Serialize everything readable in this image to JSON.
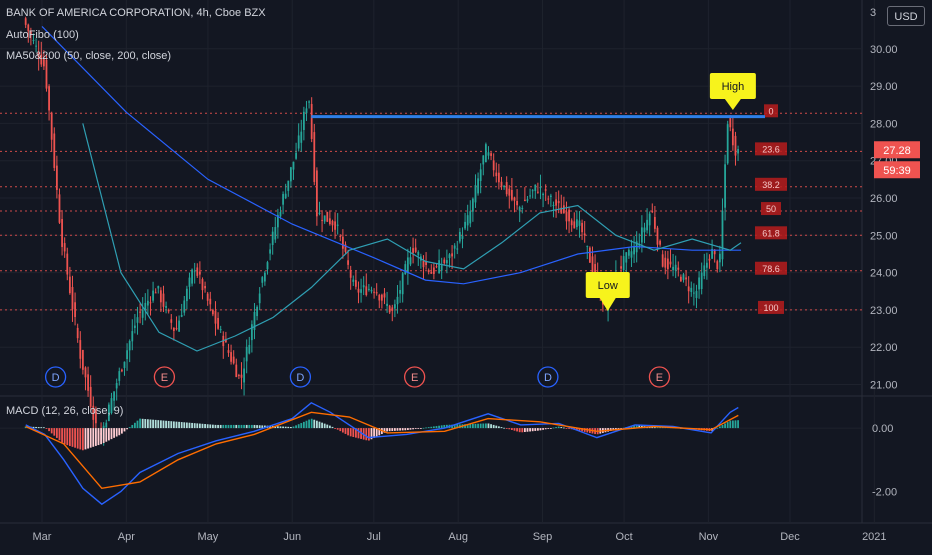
{
  "header": {
    "title": "BANK OF AMERICA CORPORATION, 4h, Cboe BZX",
    "autofibo": "AutoFibo (100)",
    "ma": "MA50&200 (50, close, 200, close)",
    "currency_button": "USD"
  },
  "macd": {
    "label": "MACD (12, 26, close, 9)"
  },
  "colors": {
    "background": "#131722",
    "up": "#26a69a",
    "down": "#ef5350",
    "fib_line": "#ef5350",
    "ma50": "#2f9fb3",
    "ma200": "#2962ff",
    "high_line": "#2e7fe8",
    "callout": "#f7f31c",
    "macd_line": "#2962ff",
    "signal_line": "#ff6d00"
  },
  "chart_data": {
    "type": "candlestick",
    "symbol": "BAC",
    "timeframe": "4h",
    "x_labels": [
      "Mar",
      "Apr",
      "May",
      "Jun",
      "Jul",
      "Aug",
      "Sep",
      "Oct",
      "Nov",
      "Dec",
      "2021"
    ],
    "price_axis": {
      "ticks": [
        "21.00",
        "22.00",
        "23.00",
        "24.00",
        "25.00",
        "26.00",
        "27.00",
        "28.00",
        "29.00",
        "30.00"
      ],
      "top_partial": "3",
      "range": [
        20.8,
        31.2
      ]
    },
    "current_price": "27.28",
    "countdown": "59:39",
    "fib_levels": [
      {
        "label": "0",
        "price": 28.27
      },
      {
        "label": "23.6",
        "price": 27.25
      },
      {
        "label": "38.2",
        "price": 26.3
      },
      {
        "label": "50",
        "price": 25.65
      },
      {
        "label": "61.8",
        "price": 25.0
      },
      {
        "label": "78.6",
        "price": 24.05
      },
      {
        "label": "100",
        "price": 23.0
      }
    ],
    "high_line_price": 28.18,
    "annotations": {
      "high": "High",
      "low": "Low"
    },
    "events": [
      {
        "label": "D",
        "date": "2020-03-06"
      },
      {
        "label": "E",
        "date": "2020-04-15"
      },
      {
        "label": "D",
        "date": "2020-06-04"
      },
      {
        "label": "E",
        "date": "2020-07-16"
      },
      {
        "label": "D",
        "date": "2020-09-03"
      },
      {
        "label": "E",
        "date": "2020-10-14"
      }
    ],
    "price_path": [
      [
        "2020-02-24",
        30.8
      ],
      [
        "2020-03-03",
        29.5
      ],
      [
        "2020-03-09",
        25.0
      ],
      [
        "2020-03-16",
        21.8
      ],
      [
        "2020-03-23",
        19.5
      ],
      [
        "2020-03-30",
        21.2
      ],
      [
        "2020-04-06",
        22.8
      ],
      [
        "2020-04-13",
        23.6
      ],
      [
        "2020-04-20",
        22.4
      ],
      [
        "2020-04-27",
        24.2
      ],
      [
        "2020-05-04",
        22.8
      ],
      [
        "2020-05-14",
        21.1
      ],
      [
        "2020-05-21",
        23.6
      ],
      [
        "2020-05-28",
        25.6
      ],
      [
        "2020-06-04",
        27.4
      ],
      [
        "2020-06-08",
        28.8
      ],
      [
        "2020-06-11",
        25.6
      ],
      [
        "2020-06-18",
        25.3
      ],
      [
        "2020-06-25",
        23.5
      ],
      [
        "2020-07-02",
        23.6
      ],
      [
        "2020-07-09",
        22.9
      ],
      [
        "2020-07-16",
        24.7
      ],
      [
        "2020-07-23",
        24.0
      ],
      [
        "2020-07-30",
        24.4
      ],
      [
        "2020-08-06",
        25.5
      ],
      [
        "2020-08-12",
        27.3
      ],
      [
        "2020-08-17",
        26.5
      ],
      [
        "2020-08-24",
        25.7
      ],
      [
        "2020-08-31",
        26.3
      ],
      [
        "2020-09-04",
        26.0
      ],
      [
        "2020-09-10",
        25.6
      ],
      [
        "2020-09-16",
        25.2
      ],
      [
        "2020-09-22",
        23.7
      ],
      [
        "2020-09-25",
        23.1
      ],
      [
        "2020-09-30",
        24.1
      ],
      [
        "2020-10-07",
        24.8
      ],
      [
        "2020-10-12",
        25.7
      ],
      [
        "2020-10-16",
        24.3
      ],
      [
        "2020-10-22",
        24.0
      ],
      [
        "2020-10-28",
        23.4
      ],
      [
        "2020-11-03",
        24.6
      ],
      [
        "2020-11-06",
        24.1
      ],
      [
        "2020-11-09",
        28.1
      ],
      [
        "2020-11-12",
        27.28
      ]
    ],
    "ma50_path": [
      [
        "2020-03-16",
        28.0
      ],
      [
        "2020-03-30",
        24.0
      ],
      [
        "2020-04-13",
        22.4
      ],
      [
        "2020-04-27",
        21.9
      ],
      [
        "2020-05-11",
        22.3
      ],
      [
        "2020-05-25",
        22.8
      ],
      [
        "2020-06-08",
        23.6
      ],
      [
        "2020-06-22",
        24.6
      ],
      [
        "2020-07-06",
        24.9
      ],
      [
        "2020-07-20",
        24.3
      ],
      [
        "2020-08-03",
        24.1
      ],
      [
        "2020-08-17",
        24.8
      ],
      [
        "2020-08-31",
        25.6
      ],
      [
        "2020-09-14",
        25.8
      ],
      [
        "2020-09-28",
        25.0
      ],
      [
        "2020-10-12",
        24.6
      ],
      [
        "2020-10-26",
        24.9
      ],
      [
        "2020-11-09",
        24.6
      ],
      [
        "2020-11-13",
        24.8
      ]
    ],
    "ma200_path": [
      [
        "2020-03-01",
        30.6
      ],
      [
        "2020-04-01",
        28.3
      ],
      [
        "2020-05-01",
        26.5
      ],
      [
        "2020-06-01",
        25.3
      ],
      [
        "2020-07-01",
        24.4
      ],
      [
        "2020-07-20",
        23.8
      ],
      [
        "2020-08-03",
        23.7
      ],
      [
        "2020-08-24",
        24.0
      ],
      [
        "2020-09-14",
        24.5
      ],
      [
        "2020-10-05",
        24.7
      ],
      [
        "2020-10-26",
        24.6
      ],
      [
        "2020-11-13",
        24.6
      ]
    ],
    "macd_axis": {
      "ticks": [
        "0.00",
        "-2.00"
      ],
      "range": [
        -2.9,
        0.95
      ]
    },
    "macd_path": [
      [
        "2020-02-24",
        0.1
      ],
      [
        "2020-03-02",
        -0.2
      ],
      [
        "2020-03-09",
        -1.0
      ],
      [
        "2020-03-16",
        -1.9
      ],
      [
        "2020-03-23",
        -2.4
      ],
      [
        "2020-03-30",
        -2.0
      ],
      [
        "2020-04-06",
        -1.4
      ],
      [
        "2020-04-20",
        -0.8
      ],
      [
        "2020-05-04",
        -0.4
      ],
      [
        "2020-05-18",
        -0.1
      ],
      [
        "2020-06-01",
        0.3
      ],
      [
        "2020-06-08",
        0.8
      ],
      [
        "2020-06-15",
        0.5
      ],
      [
        "2020-06-29",
        -0.3
      ],
      [
        "2020-07-13",
        -0.2
      ],
      [
        "2020-07-27",
        0.0
      ],
      [
        "2020-08-12",
        0.45
      ],
      [
        "2020-08-24",
        0.1
      ],
      [
        "2020-09-07",
        0.15
      ],
      [
        "2020-09-21",
        -0.3
      ],
      [
        "2020-10-05",
        0.1
      ],
      [
        "2020-10-19",
        0.05
      ],
      [
        "2020-11-02",
        -0.15
      ],
      [
        "2020-11-09",
        0.5
      ],
      [
        "2020-11-12",
        0.65
      ]
    ],
    "signal_path": [
      [
        "2020-02-24",
        0.05
      ],
      [
        "2020-03-09",
        -0.5
      ],
      [
        "2020-03-23",
        -1.9
      ],
      [
        "2020-04-06",
        -1.7
      ],
      [
        "2020-04-20",
        -1.0
      ],
      [
        "2020-05-04",
        -0.5
      ],
      [
        "2020-05-18",
        -0.2
      ],
      [
        "2020-06-08",
        0.5
      ],
      [
        "2020-06-22",
        0.35
      ],
      [
        "2020-07-06",
        -0.15
      ],
      [
        "2020-07-27",
        -0.1
      ],
      [
        "2020-08-12",
        0.3
      ],
      [
        "2020-08-31",
        0.2
      ],
      [
        "2020-09-21",
        -0.1
      ],
      [
        "2020-10-12",
        0.05
      ],
      [
        "2020-11-02",
        -0.05
      ],
      [
        "2020-11-12",
        0.4
      ]
    ]
  }
}
